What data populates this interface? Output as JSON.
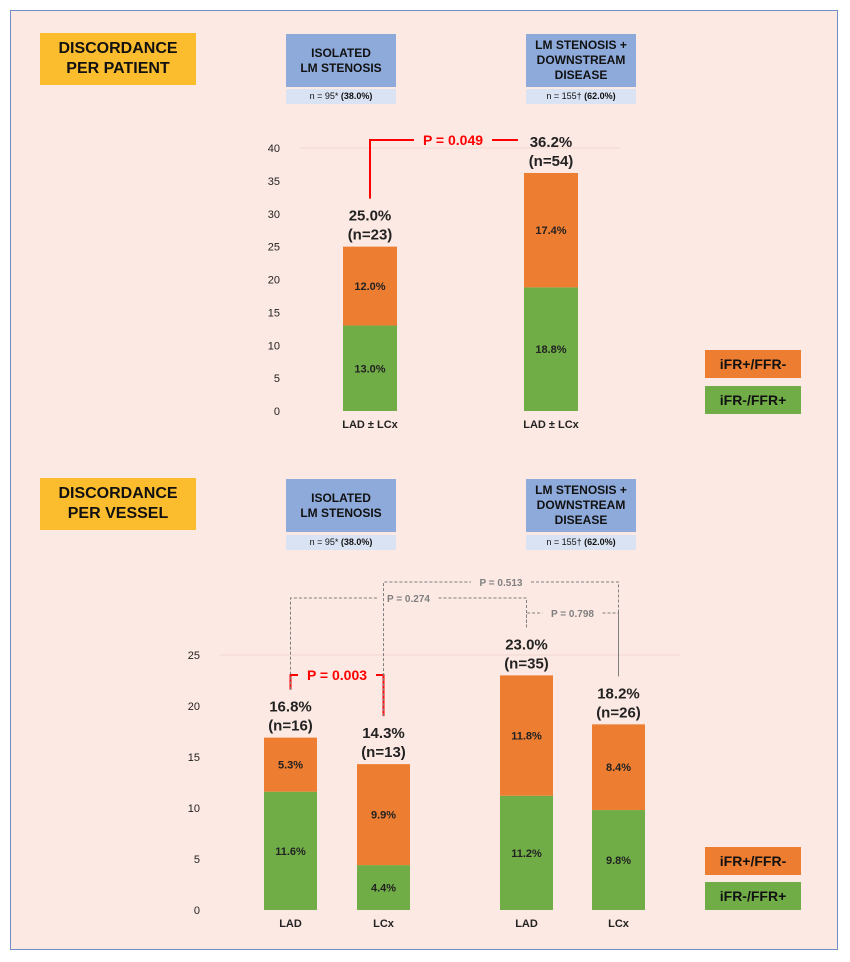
{
  "colors": {
    "iFR+/FFR-": "#ed7d31",
    "iFR-/FFR+": "#70ad47",
    "p_significant": "#ff0000",
    "p_nonsignificant": "#7f7f7f",
    "header": "#fbbd2e",
    "group": "#8eaadb",
    "group_n": "#dae3f3"
  },
  "panels": [
    {
      "title": "DISCORDANCE\nPER PATIENT",
      "groups": [
        {
          "label": "ISOLATED\nLM STENOSIS",
          "n_text": "n = 95* ",
          "n_pct": "(38.0%)"
        },
        {
          "label": "LM STENOSIS +\nDOWNSTREAM\nDISEASE",
          "n_text": "n = 155† ",
          "n_pct": "(62.0%)"
        }
      ],
      "legend": [
        "iFR+/FFR-",
        "iFR-/FFR+"
      ]
    },
    {
      "title": "DISCORDANCE\nPER VESSEL",
      "groups": [
        {
          "label": "ISOLATED\nLM STENOSIS",
          "n_text": "n = 95* ",
          "n_pct": "(38.0%)"
        },
        {
          "label": "LM STENOSIS +\nDOWNSTREAM\nDISEASE",
          "n_text": "n = 155† ",
          "n_pct": "(62.0%)"
        }
      ],
      "legend": [
        "iFR+/FFR-",
        "iFR-/FFR+"
      ]
    }
  ],
  "chart_data": [
    {
      "type": "bar",
      "stacked": true,
      "ylim": [
        0,
        40
      ],
      "yticks": [
        0,
        5,
        10,
        15,
        20,
        25,
        30,
        35,
        40
      ],
      "categories": [
        "LAD ± LCx",
        "LAD ± LCx"
      ],
      "series": [
        {
          "name": "iFR-/FFR+",
          "values": [
            13.0,
            18.8
          ],
          "labels": [
            "13.0%",
            "18.8%"
          ]
        },
        {
          "name": "iFR+/FFR-",
          "values": [
            12.0,
            17.4
          ],
          "labels": [
            "12.0%",
            "17.4%"
          ]
        }
      ],
      "totals": [
        "25.0%",
        "36.2%"
      ],
      "n": [
        "(n=23)",
        "(n=54)"
      ],
      "comparisons": [
        {
          "between": [
            0,
            1
          ],
          "label": "P = 0.049",
          "significant": true
        }
      ]
    },
    {
      "type": "bar",
      "stacked": true,
      "ylim": [
        0,
        25
      ],
      "yticks": [
        0,
        5,
        10,
        15,
        20,
        25
      ],
      "categories": [
        "LAD",
        "LCx",
        "LAD",
        "LCx"
      ],
      "series": [
        {
          "name": "iFR-/FFR+",
          "values": [
            11.6,
            4.4,
            11.2,
            9.8
          ],
          "labels": [
            "11.6%",
            "4.4%",
            "11.2%",
            "9.8%"
          ]
        },
        {
          "name": "iFR+/FFR-",
          "values": [
            5.3,
            9.9,
            11.8,
            8.4
          ],
          "labels": [
            "5.3%",
            "9.9%",
            "11.8%",
            "8.4%"
          ]
        }
      ],
      "totals": [
        "16.8%",
        "14.3%",
        "23.0%",
        "18.2%"
      ],
      "n": [
        "(n=16)",
        "(n=13)",
        "(n=35)",
        "(n=26)"
      ],
      "comparisons": [
        {
          "between": [
            0,
            1
          ],
          "label": "P = 0.003",
          "significant": true
        },
        {
          "between": [
            1,
            3
          ],
          "label": "P = 0.513",
          "significant": false
        },
        {
          "between": [
            0,
            2
          ],
          "label": "P = 0.274",
          "significant": false
        },
        {
          "between": [
            2,
            3
          ],
          "label": "P = 0.798",
          "significant": false
        }
      ]
    }
  ]
}
